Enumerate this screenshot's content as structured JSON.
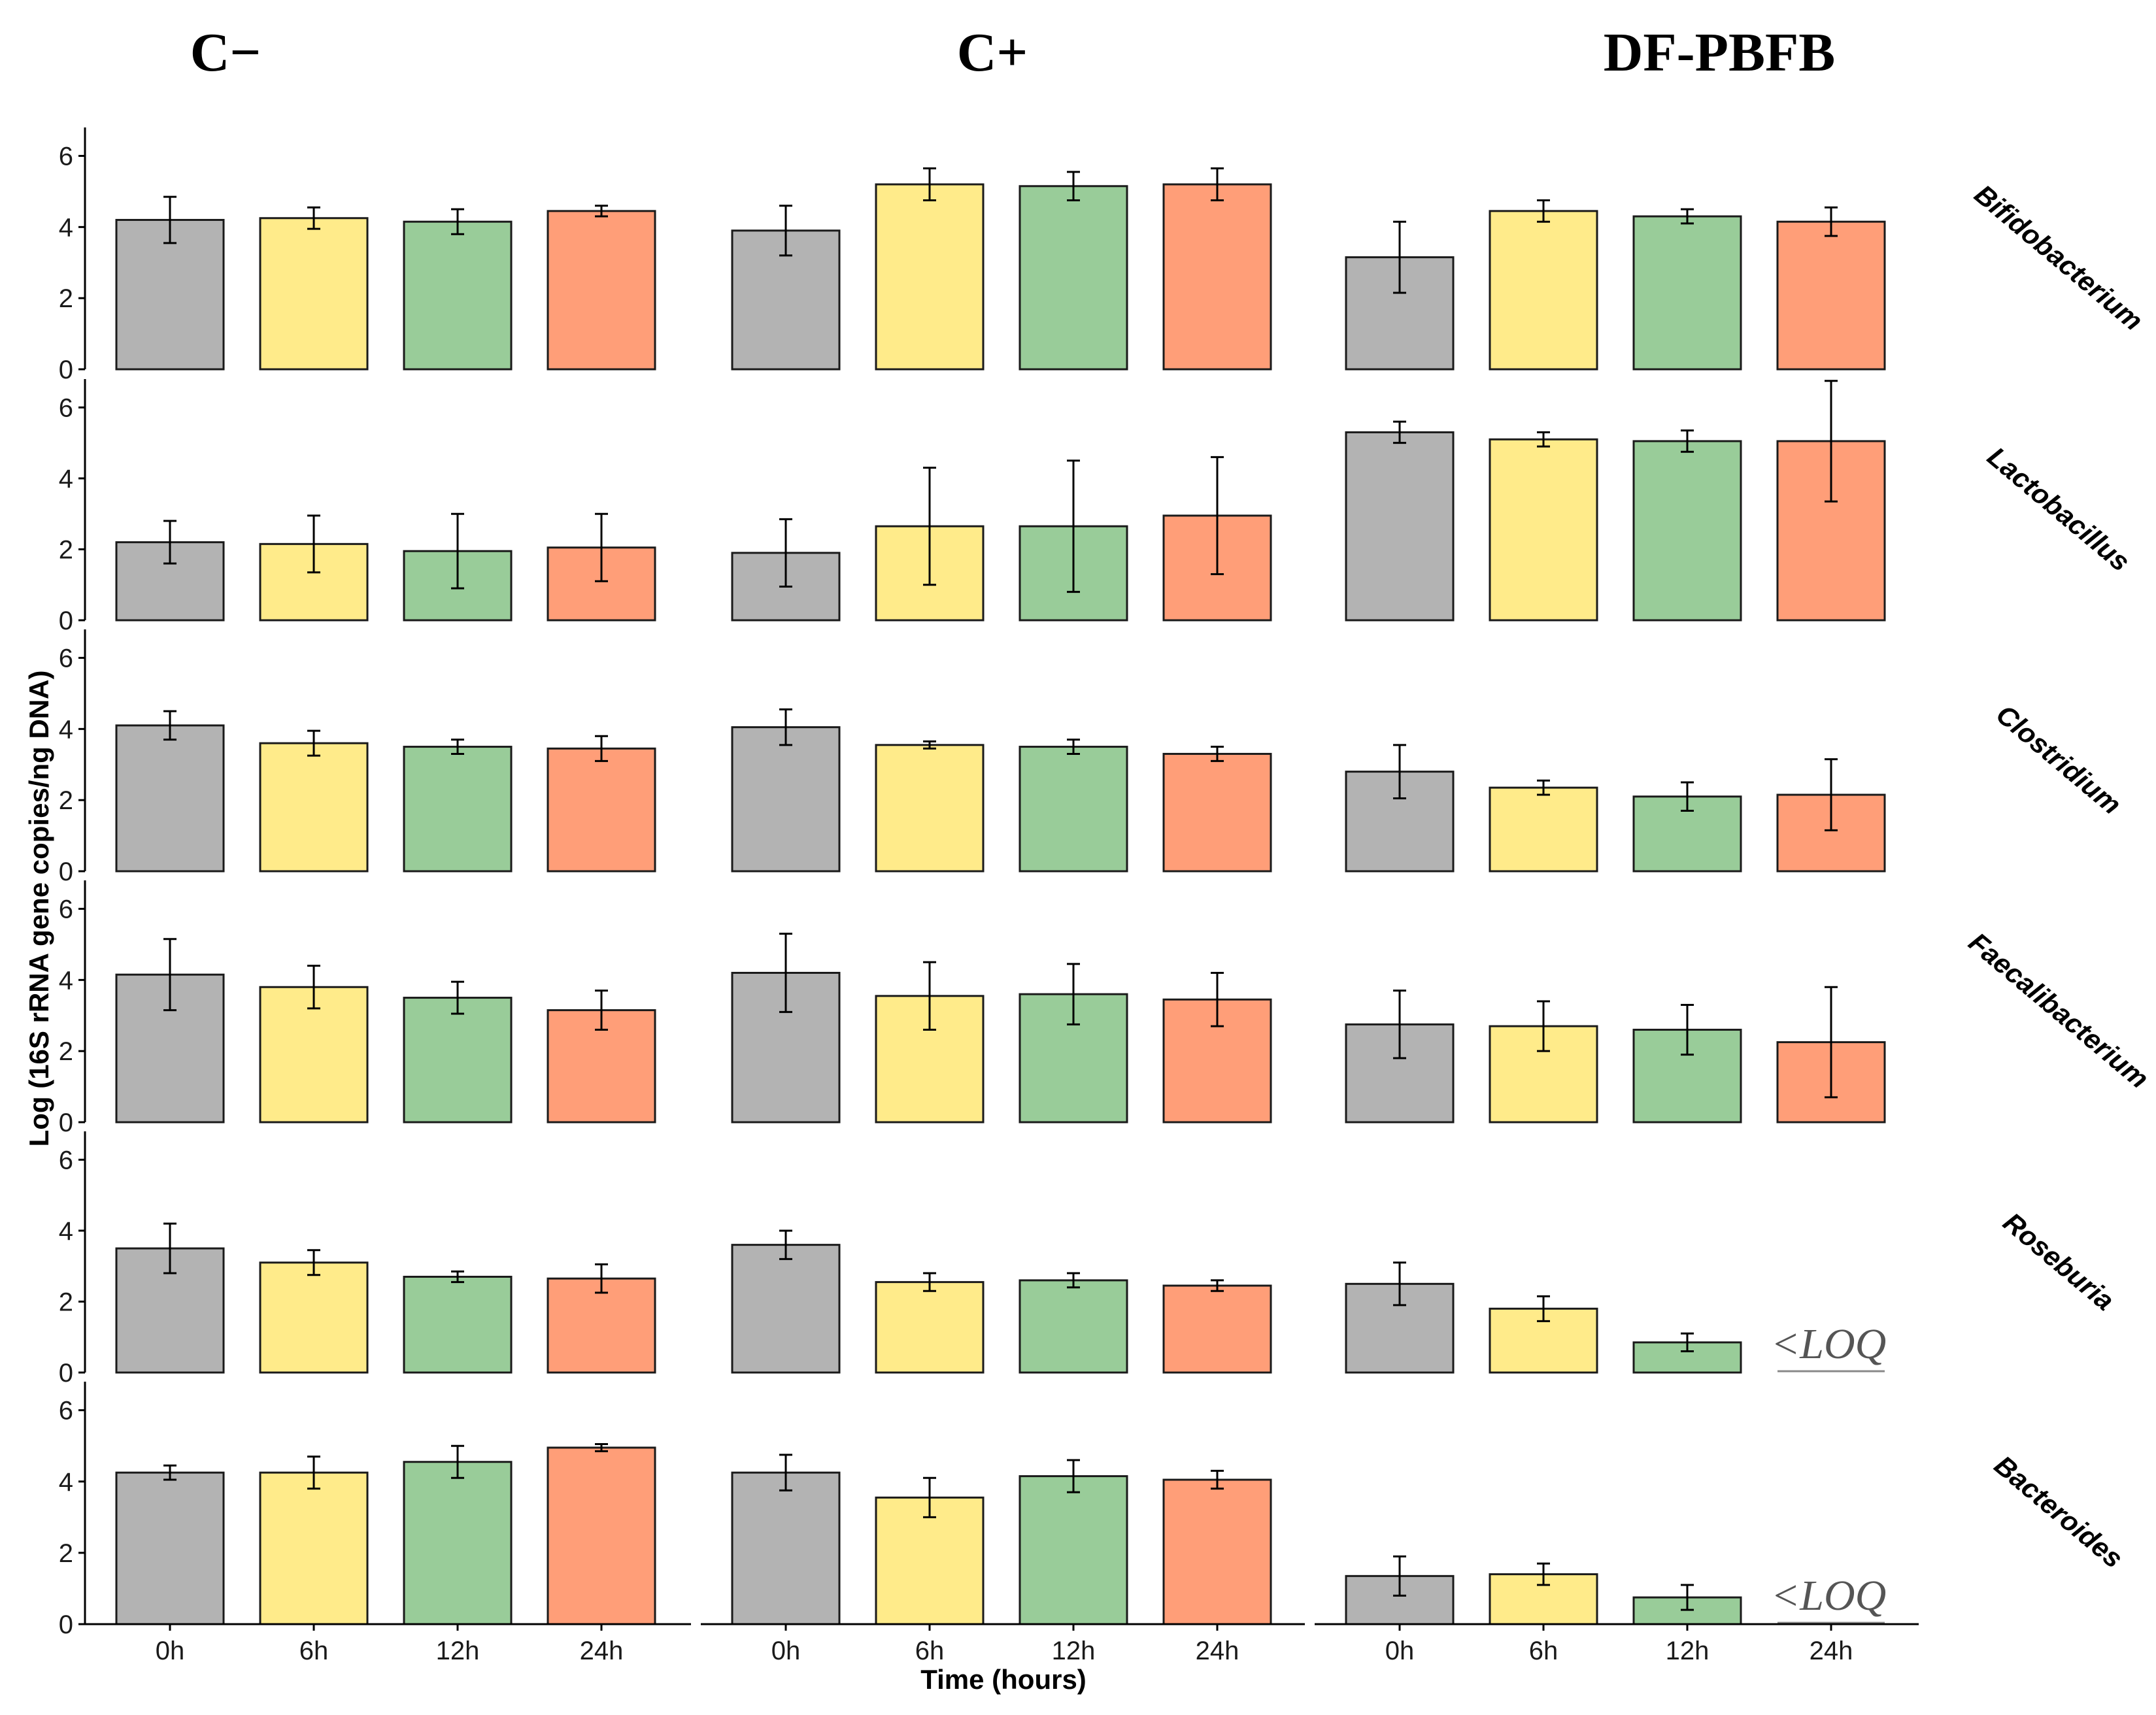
{
  "chart_data": {
    "type": "bar",
    "column_titles": [
      "C−",
      "C+",
      "DF-PBFB"
    ],
    "categories": [
      "0h",
      "6h",
      "12h",
      "24h"
    ],
    "xlabel": "Time (hours)",
    "ylabel": "Log (16S rRNA gene copies/ng DNA)",
    "ylim": [
      0,
      6.8
    ],
    "yticks": [
      "0",
      "2",
      "4",
      "6"
    ],
    "bar_colors": [
      "#b3b3b3",
      "#ffeb8a",
      "#99cc99",
      "#ff9e78"
    ],
    "loq_label": "<LOQ",
    "rows": [
      {
        "label": "Bifidobacterium",
        "groups": [
          {
            "values": [
              4.2,
              4.25,
              4.15,
              4.45
            ],
            "errors": [
              0.65,
              0.3,
              0.35,
              0.15
            ]
          },
          {
            "values": [
              3.9,
              5.2,
              5.15,
              5.2
            ],
            "errors": [
              0.7,
              0.45,
              0.4,
              0.45
            ]
          },
          {
            "values": [
              3.15,
              4.45,
              4.3,
              4.15
            ],
            "errors": [
              1.0,
              0.3,
              0.2,
              0.4
            ]
          }
        ]
      },
      {
        "label": "Lactobacillus",
        "groups": [
          {
            "values": [
              2.2,
              2.15,
              1.95,
              2.05
            ],
            "errors": [
              0.6,
              0.8,
              1.05,
              0.95
            ]
          },
          {
            "values": [
              1.9,
              2.65,
              2.65,
              2.95
            ],
            "errors": [
              0.95,
              1.65,
              1.85,
              1.65
            ]
          },
          {
            "values": [
              5.3,
              5.1,
              5.05,
              5.05
            ],
            "errors": [
              0.3,
              0.2,
              0.3,
              1.7
            ]
          }
        ]
      },
      {
        "label": "Clostridium",
        "groups": [
          {
            "values": [
              4.1,
              3.6,
              3.5,
              3.45
            ],
            "errors": [
              0.4,
              0.35,
              0.2,
              0.35
            ]
          },
          {
            "values": [
              4.05,
              3.55,
              3.5,
              3.3
            ],
            "errors": [
              0.5,
              0.1,
              0.2,
              0.2
            ]
          },
          {
            "values": [
              2.8,
              2.35,
              2.1,
              2.15
            ],
            "errors": [
              0.75,
              0.2,
              0.4,
              1.0
            ]
          }
        ]
      },
      {
        "label": "Faecalibacterium",
        "groups": [
          {
            "values": [
              4.15,
              3.8,
              3.5,
              3.15
            ],
            "errors": [
              1.0,
              0.6,
              0.45,
              0.55
            ]
          },
          {
            "values": [
              4.2,
              3.55,
              3.6,
              3.45
            ],
            "errors": [
              1.1,
              0.95,
              0.85,
              0.75
            ]
          },
          {
            "values": [
              2.75,
              2.7,
              2.6,
              2.25
            ],
            "errors": [
              0.95,
              0.7,
              0.7,
              1.55
            ]
          }
        ]
      },
      {
        "label": "Roseburia",
        "groups": [
          {
            "values": [
              3.5,
              3.1,
              2.7,
              2.65
            ],
            "errors": [
              0.7,
              0.35,
              0.15,
              0.4
            ]
          },
          {
            "values": [
              3.6,
              2.55,
              2.6,
              2.45
            ],
            "errors": [
              0.4,
              0.25,
              0.2,
              0.15
            ]
          },
          {
            "values": [
              2.5,
              1.8,
              0.85,
              null
            ],
            "errors": [
              0.6,
              0.35,
              0.25,
              null
            ]
          }
        ]
      },
      {
        "label": "Bacteroides",
        "groups": [
          {
            "values": [
              4.25,
              4.25,
              4.55,
              4.95
            ],
            "errors": [
              0.2,
              0.45,
              0.45,
              0.1
            ]
          },
          {
            "values": [
              4.25,
              3.55,
              4.15,
              4.05
            ],
            "errors": [
              0.5,
              0.55,
              0.45,
              0.25
            ]
          },
          {
            "values": [
              1.35,
              1.4,
              0.75,
              null
            ],
            "errors": [
              0.55,
              0.3,
              0.35,
              null
            ]
          }
        ]
      }
    ]
  }
}
